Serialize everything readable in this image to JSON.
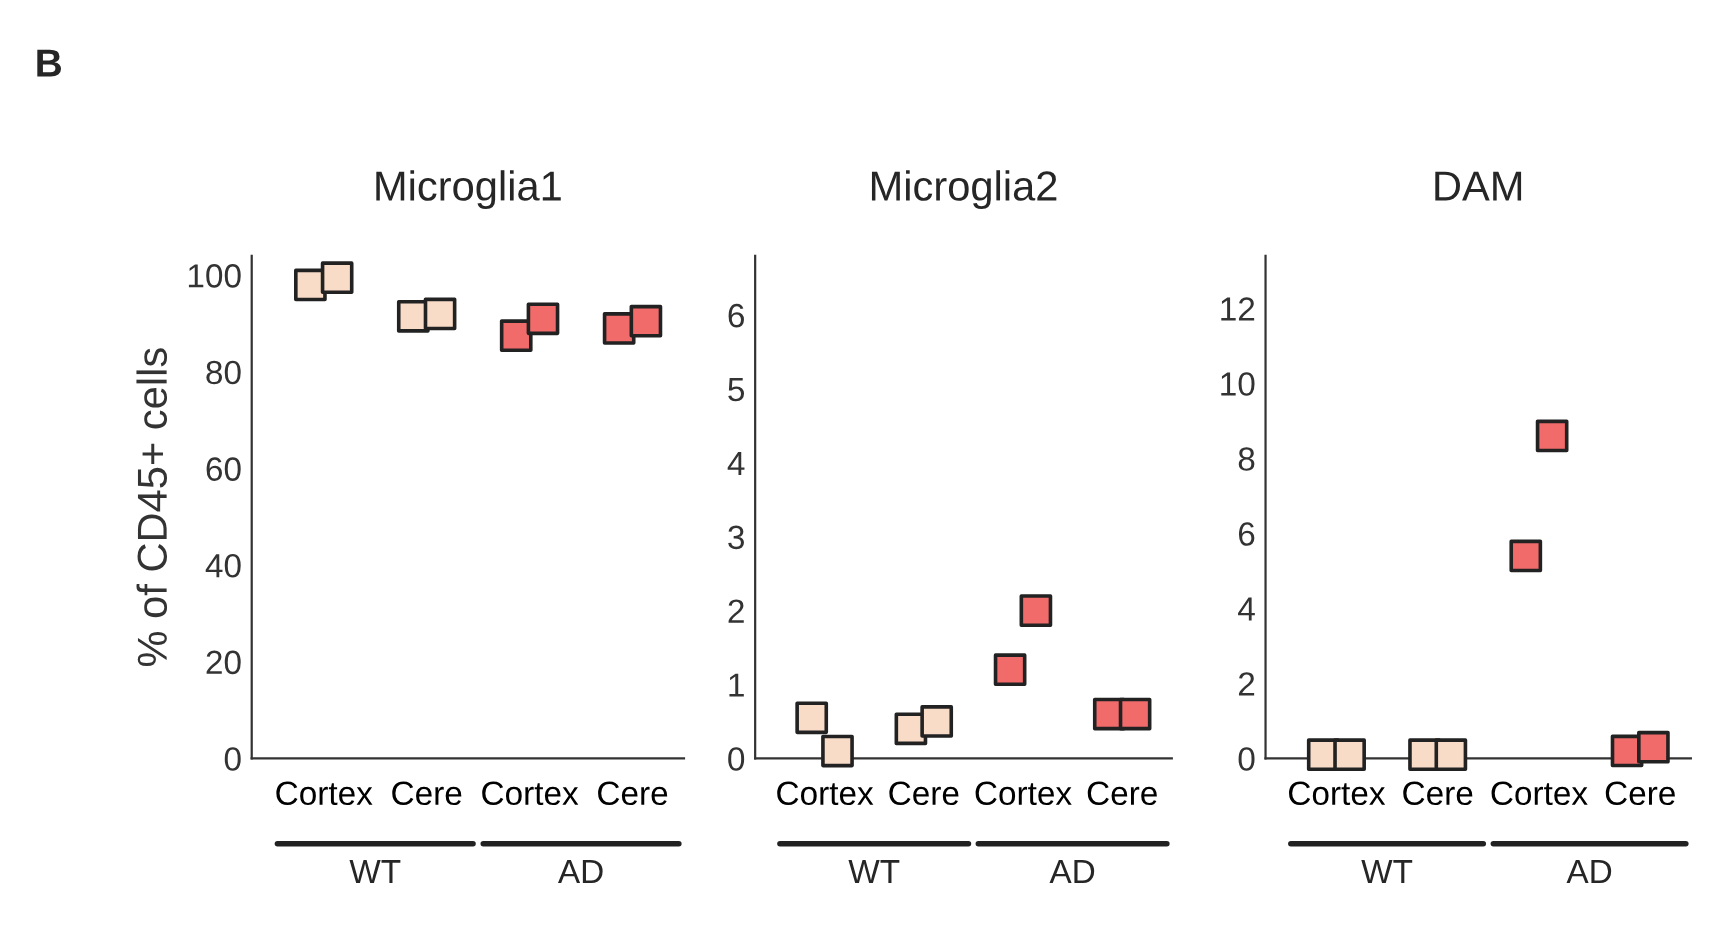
{
  "chart_data": [
    {
      "type": "scatter",
      "title": "Microglia1",
      "ylabel": "% of CD45+ cells",
      "categories": [
        "Cortex",
        "Cere",
        "Cortex",
        "Cere"
      ],
      "ylim": [
        0,
        104
      ],
      "yticks": [
        0,
        20,
        40,
        60,
        80,
        100
      ],
      "marker": "square",
      "grid": false,
      "legend": false,
      "annotations": [
        "B",
        "WT",
        "AD"
      ],
      "series": [
        {
          "colors": [
            "#f9dcc8",
            "#f9dcc8",
            "#f26b6b",
            "#f26b6b"
          ],
          "values": [
            98,
            91.5,
            87.5,
            89
          ]
        },
        {
          "colors": [
            "#f9dcc8",
            "#f9dcc8",
            "#f26b6b",
            "#f26b6b"
          ],
          "values": [
            99.5,
            92,
            91,
            90.5
          ]
        }
      ]
    },
    {
      "type": "scatter",
      "title": "Microglia2",
      "categories": [
        "Cortex",
        "Cere",
        "Cortex",
        "Cere"
      ],
      "ylim": [
        0,
        6.8
      ],
      "yticks": [
        0,
        1,
        2,
        3,
        4,
        5,
        6
      ],
      "marker": "square",
      "grid": false,
      "legend": false,
      "annotations": [
        "WT",
        "AD"
      ],
      "series": [
        {
          "colors": [
            "#f9dcc8",
            "#f9dcc8",
            "#f26b6b",
            "#f26b6b"
          ],
          "values": [
            0.55,
            0.4,
            1.2,
            0.6
          ]
        },
        {
          "colors": [
            "#f9dcc8",
            "#f9dcc8",
            "#f26b6b",
            "#f26b6b"
          ],
          "values": [
            0.1,
            0.5,
            2.0,
            0.6
          ]
        }
      ]
    },
    {
      "type": "scatter",
      "title": "DAM",
      "categories": [
        "Cortex",
        "Cere",
        "Cortex",
        "Cere"
      ],
      "ylim": [
        0,
        13.4
      ],
      "yticks": [
        0,
        2,
        4,
        6,
        8,
        10,
        12
      ],
      "marker": "square",
      "grid": false,
      "legend": false,
      "annotations": [
        "WT",
        "AD"
      ],
      "series": [
        {
          "colors": [
            "#f9dcc8",
            "#f9dcc8",
            "#f26b6b",
            "#f26b6b"
          ],
          "values": [
            0.1,
            0.1,
            5.4,
            0.2
          ]
        },
        {
          "colors": [
            "#f9dcc8",
            "#f9dcc8",
            "#f26b6b",
            "#f26b6b"
          ],
          "values": [
            0.1,
            0.1,
            8.6,
            0.3
          ]
        }
      ]
    }
  ]
}
